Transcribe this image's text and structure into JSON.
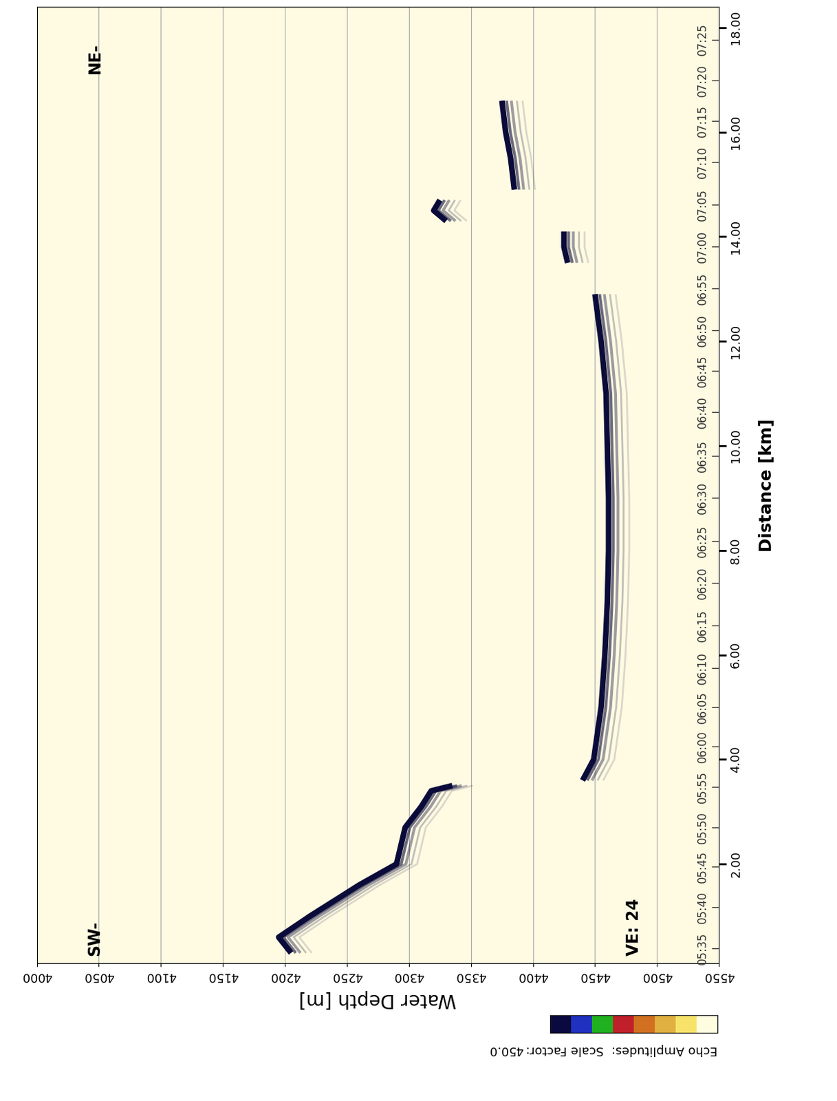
{
  "chart_data": {
    "type": "echogram",
    "xlabel": "Water Depth [m]",
    "ylabel": "Distance [km]",
    "xlim": [
      4000,
      4550
    ],
    "xticks": [
      4000,
      4050,
      4100,
      4150,
      4200,
      4250,
      4300,
      4350,
      4400,
      4450,
      4500,
      4550
    ],
    "ylim": [
      0.1,
      18.4
    ],
    "yticks": [
      {
        "value": 2,
        "label": "2.00"
      },
      {
        "value": 4,
        "label": "4.00"
      },
      {
        "value": 6,
        "label": "6.00"
      },
      {
        "value": 8,
        "label": "8.00"
      },
      {
        "value": 10,
        "label": "10.00"
      },
      {
        "value": 12,
        "label": "12.00"
      },
      {
        "value": 14,
        "label": "14.00"
      },
      {
        "value": 16,
        "label": "16.00"
      },
      {
        "value": 18,
        "label": "18.00"
      }
    ],
    "grid": "x",
    "color": "#0b0b3a",
    "segments": [
      {
        "x": [
          4205,
          4195,
          4220,
          4260,
          4290,
          4297,
          4310,
          4318,
          4335
        ],
        "y": [
          0.3,
          0.6,
          1.0,
          1.6,
          2.0,
          2.7,
          3.1,
          3.4,
          3.5
        ]
      },
      {
        "x": [
          4440,
          4449,
          4455,
          4458,
          4460,
          4461,
          4461,
          4460,
          4459,
          4455,
          4450
        ],
        "y": [
          3.6,
          4.0,
          5.0,
          6.0,
          7.0,
          8.0,
          9.0,
          10.0,
          11.0,
          12.0,
          12.9
        ]
      },
      {
        "x": [
          4428,
          4425,
          4425
        ],
        "y": [
          13.5,
          13.8,
          14.1
        ]
      },
      {
        "x": [
          4330,
          4320,
          4325
        ],
        "y": [
          14.3,
          14.5,
          14.7
        ]
      },
      {
        "x": [
          4385,
          4382,
          4378,
          4375
        ],
        "y": [
          14.9,
          15.5,
          16.0,
          16.6
        ]
      }
    ],
    "time_marks": [
      {
        "value": 0.39,
        "label": "05:35"
      },
      {
        "value": 1.17,
        "label": "05:40"
      },
      {
        "value": 1.95,
        "label": "05:45"
      },
      {
        "value": 2.7,
        "label": "05:50"
      },
      {
        "value": 3.47,
        "label": "05:55"
      },
      {
        "value": 4.25,
        "label": "06:00"
      },
      {
        "value": 5.0,
        "label": "06:05"
      },
      {
        "value": 5.75,
        "label": "06:10"
      },
      {
        "value": 6.56,
        "label": "06:15"
      },
      {
        "value": 7.38,
        "label": "06:20"
      },
      {
        "value": 8.18,
        "label": "06:25"
      },
      {
        "value": 9.0,
        "label": "06:30"
      },
      {
        "value": 9.81,
        "label": "06:35"
      },
      {
        "value": 10.65,
        "label": "06:40"
      },
      {
        "value": 11.43,
        "label": "06:45"
      },
      {
        "value": 12.21,
        "label": "06:50"
      },
      {
        "value": 13.01,
        "label": "06:55"
      },
      {
        "value": 13.81,
        "label": "07:00"
      },
      {
        "value": 14.61,
        "label": "07:05"
      },
      {
        "value": 15.42,
        "label": "07:10"
      },
      {
        "value": 16.21,
        "label": "07:15"
      },
      {
        "value": 16.99,
        "label": "07:20"
      },
      {
        "value": 17.77,
        "label": "07:25"
      }
    ],
    "annotations": [
      "SW-",
      "NE-",
      "VE: 24"
    ],
    "colorbar": {
      "label": "Echo Amplitudes:",
      "scale_label": "Scale Factor:",
      "scale_factor": 450.0,
      "colors": [
        "#fffde0",
        "#f7e36a",
        "#e0b040",
        "#d07020",
        "#c0202a",
        "#20b020",
        "#2030c0",
        "#0a0a40"
      ]
    }
  }
}
